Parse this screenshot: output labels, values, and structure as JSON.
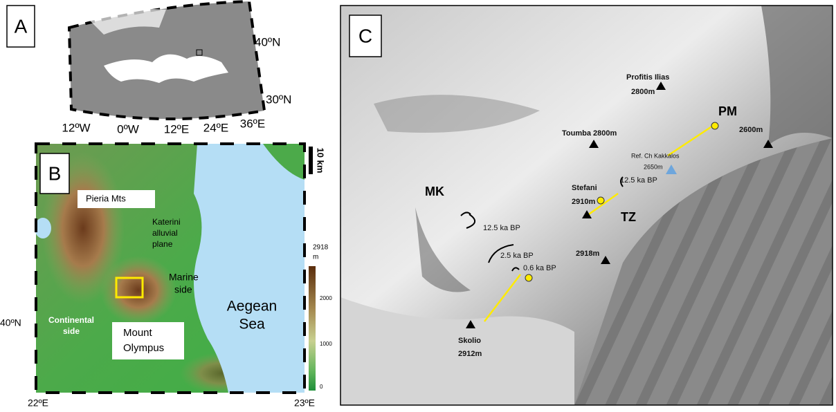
{
  "panel_a": {
    "label": "A",
    "lat_labels": [
      "40ºN",
      "30ºN"
    ],
    "lon_labels": [
      "12ºW",
      "0ºW",
      "12ºE",
      "24ºE",
      "36ºE"
    ]
  },
  "panel_b": {
    "label": "B",
    "scale_bar": "10 km",
    "colorbar": {
      "max_value": "2918",
      "unit": "m",
      "ticks": [
        "2000",
        "1000",
        "0"
      ]
    },
    "places": {
      "pieria": "Pieria Mts",
      "katerini": [
        "Katerini",
        "alluvial",
        "plane"
      ],
      "marine": [
        "Marine",
        "side"
      ],
      "sea": [
        "Aegean",
        "Sea"
      ],
      "continental": [
        "Continental",
        "side"
      ],
      "olympus": [
        "Mount",
        "Olympus"
      ]
    },
    "lat_label": "40ºN",
    "lon_labels": [
      "22ºE",
      "23ºE"
    ]
  },
  "panel_c": {
    "label": "C",
    "profitis": [
      "Profitis Ilias",
      "2800m"
    ],
    "pm": "PM",
    "peak_2600": "2600m",
    "toumba": "Toumba 2800m",
    "refuge": [
      "Ref. Ch Kakkalos",
      "2650m"
    ],
    "tz_age": "12.5 ka BP",
    "stefani": [
      "Stefani",
      "2910m"
    ],
    "tz": "TZ",
    "mk": "MK",
    "mk_age_1": "12.5 ka BP",
    "mk_age_2": "2.5 ka BP",
    "mk_age_3": "0.6 ka BP",
    "peak_2918": "2918m",
    "skolio": [
      "Skolio",
      "2912m"
    ]
  }
}
